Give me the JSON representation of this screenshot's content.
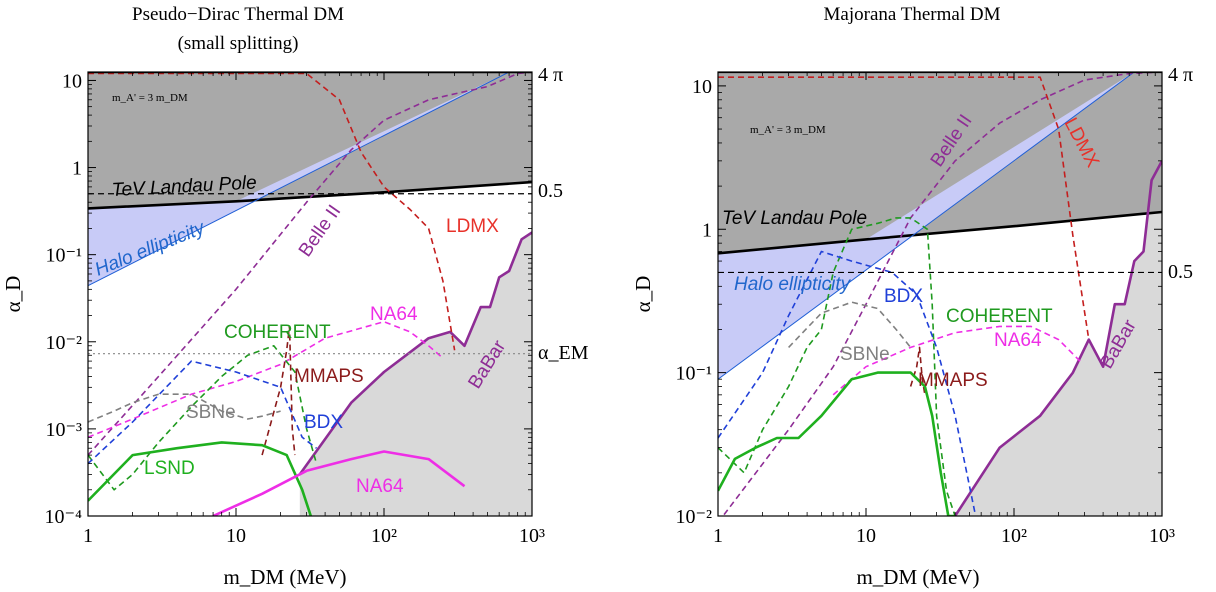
{
  "colors": {
    "axis": "#000000",
    "excluded_gray": "#a9a9a9",
    "light_gray": "#d9d9d9",
    "halo_fill": "#c8cbf7",
    "black": "#000000",
    "blue": "#1f5fd6",
    "babar": "#8e2d95",
    "belle": "#8e2d95",
    "ldmx": "#c41e1e",
    "ldmx_label": "#e8322a",
    "na64": "#ee2ee6",
    "coherent": "#1f9a1f",
    "sbne": "#808080",
    "bdx": "#2040d8",
    "mmaps": "#8b1a1a",
    "lsnd": "#1fb01f",
    "halo": "#2066cc"
  },
  "chart_data": [
    {
      "type": "line",
      "title": "Pseudo−Dirac Thermal DM",
      "subtitle": "(small splitting)",
      "xlabel": "m_DM (MeV)",
      "ylabel": "α_D",
      "xscale": "log",
      "yscale": "log",
      "xlim": [
        1,
        1000
      ],
      "ylim": [
        0.0001,
        12.5
      ],
      "grid": false,
      "x_ticks": [
        "1",
        "10",
        "10²",
        "10³"
      ],
      "y_ticks": [
        "10⁻⁴",
        "10⁻³",
        "10⁻²",
        "10⁻¹",
        "1",
        "10"
      ],
      "right_labels": [
        "4 π",
        "0.5",
        "α_EM"
      ],
      "annotations": [
        "m_A' = 3 m_DM"
      ],
      "reference_lines": [
        {
          "name": "4 π",
          "y": 12.57
        },
        {
          "name": "0.5",
          "y": 0.5
        },
        {
          "name": "α_EM",
          "y": 0.0073
        }
      ],
      "series": [
        {
          "name": "TeV Landau Pole",
          "style": "solid",
          "x": [
            1,
            10,
            100,
            1000
          ],
          "y": [
            0.34,
            0.41,
            0.52,
            0.68
          ]
        },
        {
          "name": "Halo ellipticity",
          "style": "solid",
          "x": [
            1,
            700
          ],
          "y": [
            0.044,
            12.5
          ]
        },
        {
          "name": "BaBar",
          "style": "solid",
          "x": [
            27,
            60,
            100,
            200,
            280,
            350,
            450,
            520,
            600,
            700,
            850,
            1000
          ],
          "y": [
            0.0003,
            0.002,
            0.0045,
            0.011,
            0.013,
            0.009,
            0.025,
            0.025,
            0.055,
            0.065,
            0.15,
            0.18
          ]
        },
        {
          "name": "Belle II",
          "style": "dashed",
          "x": [
            1,
            3,
            10,
            30,
            60,
            100,
            200,
            300,
            500,
            800,
            1000
          ],
          "y": [
            0.0005,
            0.004,
            0.04,
            0.4,
            1.6,
            3.5,
            6,
            7,
            8.5,
            12,
            12.5
          ]
        },
        {
          "name": "LDMX",
          "style": "dashed",
          "x": [
            1,
            30,
            50,
            70,
            100,
            150,
            200,
            250,
            300
          ],
          "y": [
            12,
            12,
            6,
            1.5,
            0.6,
            0.33,
            0.2,
            0.05,
            0.008
          ]
        },
        {
          "name": "NA64",
          "style": "dashed",
          "x": [
            1,
            2,
            5,
            10,
            20,
            40,
            100,
            150,
            200,
            250
          ],
          "y": [
            0.0008,
            0.0013,
            0.0025,
            0.0035,
            0.0055,
            0.011,
            0.017,
            0.013,
            0.009,
            0.0065
          ]
        },
        {
          "name": "COHERENT",
          "style": "dashed",
          "x": [
            1,
            1.5,
            2,
            3,
            5,
            8,
            12,
            18,
            25,
            30,
            35
          ],
          "y": [
            0.0005,
            0.0002,
            0.0003,
            0.0007,
            0.0018,
            0.004,
            0.007,
            0.009,
            0.0045,
            0.001,
            0.0004
          ]
        },
        {
          "name": "SBNe",
          "style": "dashed",
          "x": [
            1,
            1.5,
            2,
            3,
            5,
            8,
            12,
            15,
            20
          ],
          "y": [
            0.0012,
            0.0016,
            0.002,
            0.0025,
            0.0025,
            0.0016,
            0.0013,
            0.0014,
            0.0016
          ]
        },
        {
          "name": "BDX",
          "style": "dashed",
          "x": [
            1,
            2,
            5,
            10,
            20,
            28,
            35
          ],
          "y": [
            0.0004,
            0.0012,
            0.006,
            0.0045,
            0.003,
            0.0008,
            0.0006
          ]
        },
        {
          "name": "MMAPS",
          "style": "dashed",
          "x": [
            15,
            20,
            22,
            23,
            24,
            25
          ],
          "y": [
            0.0005,
            0.003,
            0.008,
            0.015,
            0.001,
            0.0005
          ]
        },
        {
          "name": "LSND",
          "style": "solid",
          "x": [
            1,
            2,
            4,
            8,
            15,
            22,
            28,
            32
          ],
          "y": [
            0.00015,
            0.0005,
            0.0006,
            0.0007,
            0.00065,
            0.0005,
            0.0002,
            0.0001
          ]
        },
        {
          "name": "NA64",
          "style": "solid",
          "x": [
            7,
            15,
            30,
            60,
            100,
            200,
            350
          ],
          "y": [
            0.0001,
            0.00018,
            0.00033,
            0.00045,
            0.00055,
            0.00045,
            0.00022
          ]
        }
      ],
      "labels": [
        "TeV Landau Pole",
        "Halo ellipticity",
        "Belle II",
        "LDMX",
        "NA64",
        "COHERENT",
        "BaBar",
        "MMAPS",
        "SBNe",
        "BDX",
        "LSND",
        "NA64"
      ]
    },
    {
      "type": "line",
      "title": "Majorana Thermal DM",
      "xlabel": "m_DM (MeV)",
      "ylabel": "α_D",
      "xscale": "log",
      "yscale": "log",
      "xlim": [
        1,
        1000
      ],
      "ylim": [
        0.01,
        12.5
      ],
      "grid": false,
      "x_ticks": [
        "1",
        "10",
        "10²",
        "10³"
      ],
      "y_ticks": [
        "10⁻²",
        "10⁻¹",
        "1",
        "10"
      ],
      "right_labels": [
        "4 π",
        "0.5"
      ],
      "annotations": [
        "m_A' = 3 m_DM"
      ],
      "reference_lines": [
        {
          "name": "4 π",
          "y": 12.57
        },
        {
          "name": "0.5",
          "y": 0.5
        }
      ],
      "series": [
        {
          "name": "TeV Landau Pole",
          "style": "solid",
          "x": [
            1,
            10,
            100,
            1000
          ],
          "y": [
            0.68,
            0.85,
            1.05,
            1.32
          ]
        },
        {
          "name": "Halo ellipticity",
          "style": "solid",
          "x": [
            1,
            650
          ],
          "y": [
            0.09,
            12.5
          ]
        },
        {
          "name": "BaBar",
          "style": "solid",
          "x": [
            40,
            80,
            150,
            250,
            320,
            400,
            480,
            560,
            650,
            750,
            850,
            1000
          ],
          "y": [
            0.01,
            0.03,
            0.05,
            0.1,
            0.17,
            0.11,
            0.3,
            0.3,
            0.6,
            0.7,
            2.2,
            3.0
          ]
        },
        {
          "name": "Belle II",
          "style": "dashed",
          "x": [
            1,
            3,
            6,
            10,
            20,
            40,
            80,
            150,
            300,
            600,
            1000
          ],
          "y": [
            0.009,
            0.04,
            0.11,
            0.3,
            1.2,
            3.0,
            5.5,
            8,
            11,
            12.2,
            12.5
          ]
        },
        {
          "name": "LDMX",
          "style": "dashed",
          "x": [
            1,
            150,
            200,
            250,
            320
          ],
          "y": [
            11.5,
            11.5,
            5,
            0.9,
            0.17
          ]
        },
        {
          "name": "NA64",
          "style": "dashed",
          "x": [
            6,
            10,
            20,
            40,
            80,
            130,
            200,
            280
          ],
          "y": [
            0.07,
            0.11,
            0.15,
            0.19,
            0.21,
            0.21,
            0.17,
            0.12
          ]
        },
        {
          "name": "COHERENT",
          "style": "dashed",
          "x": [
            1,
            1.5,
            2,
            3,
            4,
            5,
            6,
            8,
            12,
            16,
            20,
            26,
            28,
            30,
            35,
            40
          ],
          "y": [
            0.03,
            0.02,
            0.04,
            0.08,
            0.15,
            0.2,
            0.5,
            1.0,
            1.1,
            1.2,
            1.2,
            1.0,
            0.3,
            0.05,
            0.015,
            0.01
          ]
        },
        {
          "name": "SBNe",
          "style": "dashed",
          "x": [
            3,
            5,
            8,
            12,
            16,
            20
          ],
          "y": [
            0.15,
            0.26,
            0.31,
            0.28,
            0.2,
            0.15
          ]
        },
        {
          "name": "BDX",
          "style": "dashed",
          "x": [
            1,
            2,
            3,
            5,
            8,
            15,
            22,
            30,
            40,
            55
          ],
          "y": [
            0.035,
            0.1,
            0.25,
            0.7,
            0.6,
            0.5,
            0.35,
            0.15,
            0.05,
            0.01
          ]
        },
        {
          "name": "MMAPS",
          "style": "dashed",
          "x": [
            20,
            22,
            23,
            24,
            25
          ],
          "y": [
            0.08,
            0.11,
            0.15,
            0.09,
            0.07
          ]
        },
        {
          "name": "COHERENT",
          "style": "solid",
          "x": [
            1,
            1.3,
            1.8,
            2.5,
            3.5,
            5,
            8,
            12,
            20,
            25,
            28,
            32,
            36,
            40
          ],
          "y": [
            0.015,
            0.025,
            0.03,
            0.035,
            0.035,
            0.05,
            0.09,
            0.1,
            0.1,
            0.08,
            0.05,
            0.02,
            0.01,
            0.01
          ]
        }
      ],
      "labels": [
        "TeV Landau Pole",
        "Halo ellipticity",
        "Belle II",
        "LDMX",
        "BDX",
        "COHERENT",
        "SBNe",
        "NA64",
        "MMAPS",
        "BaBar"
      ]
    }
  ]
}
